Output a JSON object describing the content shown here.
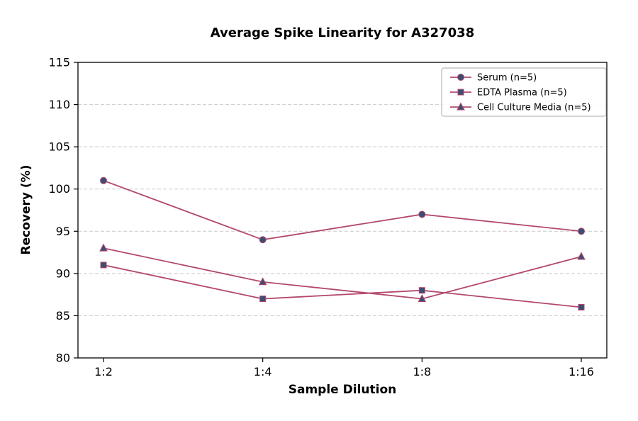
{
  "figure": {
    "background": "#ffffff"
  },
  "chart_data": {
    "type": "line",
    "title": "Average Spike Linearity for A327038",
    "xlabel": "Sample Dilution",
    "ylabel": "Recovery (%)",
    "categories": [
      "1:2",
      "1:4",
      "1:8",
      "1:16"
    ],
    "series": [
      {
        "name": "Serum (n=5)",
        "marker": "circle",
        "values": [
          101,
          94,
          97,
          95
        ]
      },
      {
        "name": "EDTA Plasma (n=5)",
        "marker": "square",
        "values": [
          91,
          87,
          88,
          86
        ]
      },
      {
        "name": "Cell Culture Media (n=5)",
        "marker": "triangle",
        "values": [
          93,
          89,
          87,
          92
        ]
      }
    ],
    "ylim": [
      80,
      115
    ],
    "yticks": [
      80,
      85,
      90,
      95,
      100,
      105,
      110,
      115
    ],
    "grid": "horizontal-dashed",
    "legend_position": "top-right",
    "colors": {
      "line": "#b3486b",
      "marker_fill": "#3c4d72",
      "marker_edge": "#b3486b",
      "grid": "#c9c9c9",
      "axis": "#000000",
      "text": "#000000",
      "legend_border": "#a8a8a8",
      "legend_bg": "#ffffff"
    }
  }
}
